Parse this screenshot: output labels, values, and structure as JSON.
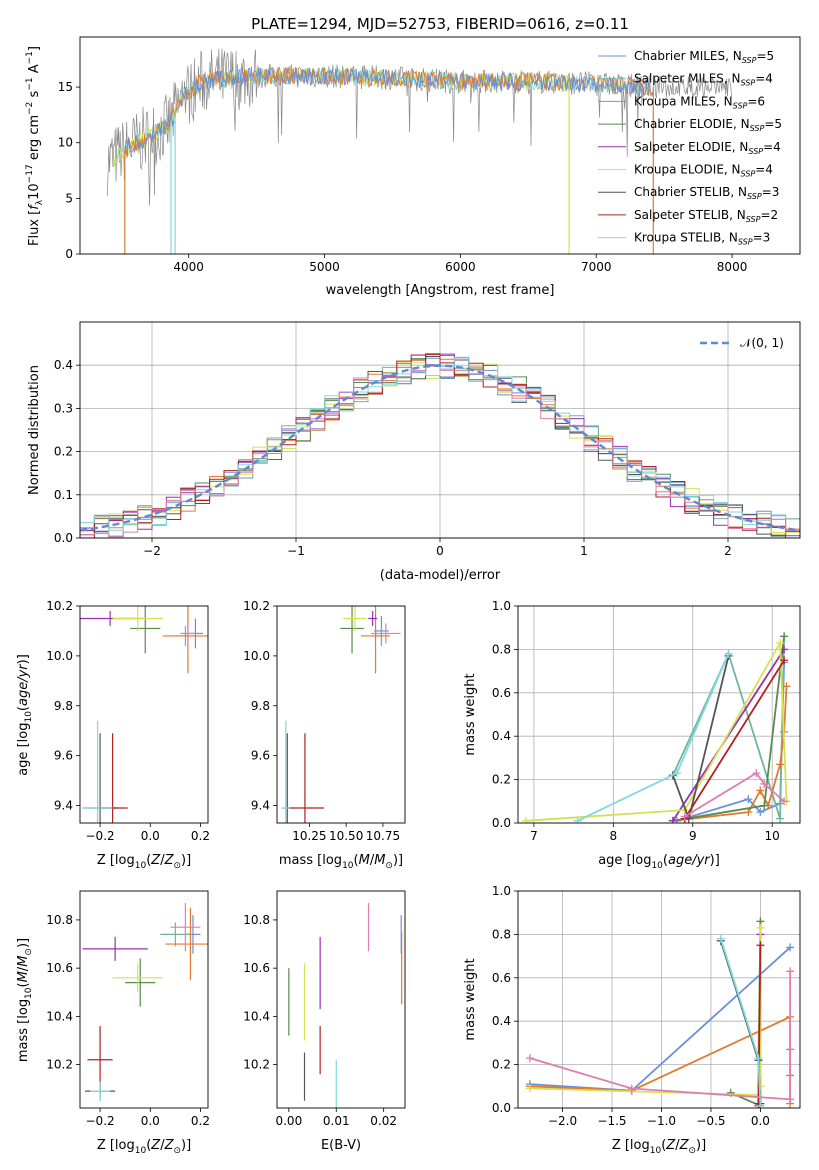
{
  "figure_title": "PLATE=1294, MJD=52753, FIBERID=0616, z=0.11",
  "colors": {
    "Chabrier MILES": "#6a8fd8",
    "Salpeter MILES": "#6fb5a0",
    "Kroupa MILES": "#e07b30",
    "Chabrier ELODIE": "#5a8a50",
    "Salpeter ELODIE": "#9b30b0",
    "Kroupa ELODIE": "#d8e050",
    "Chabrier STELIB": "#555555",
    "Salpeter STELIB": "#b02020",
    "Kroupa STELIB": "#80d8e0",
    "pink": "#e07cb0"
  },
  "chart_data": [
    {
      "id": "spectrum",
      "type": "line",
      "xlabel": "wavelength [Angstrom, rest frame]",
      "ylabel": "Flux [f_λ10^{-17} erg cm^{-2} s^{-1} A^{-1}]",
      "xlim": [
        3200,
        8500
      ],
      "ylim": [
        0,
        19.5
      ],
      "xticks": [
        "4000",
        "5000",
        "6000",
        "7000",
        "8000"
      ],
      "yticks": [
        "0",
        "5",
        "10",
        "15"
      ],
      "legend_position": "right",
      "legend": [
        {
          "label": "Chabrier MILES, N",
          "sub": "SSP",
          "suffix": "=5"
        },
        {
          "label": "Salpeter MILES, N",
          "sub": "SSP",
          "suffix": "=4"
        },
        {
          "label": "Kroupa MILES, N",
          "sub": "SSP",
          "suffix": "=6"
        },
        {
          "label": "Chabrier ELODIE, N",
          "sub": "SSP",
          "suffix": "=5"
        },
        {
          "label": "Salpeter ELODIE, N",
          "sub": "SSP",
          "suffix": "=4"
        },
        {
          "label": "Kroupa ELODIE, N",
          "sub": "SSP",
          "suffix": "=4"
        },
        {
          "label": "Chabrier STELIB, N",
          "sub": "SSP",
          "suffix": "=3"
        },
        {
          "label": "Salpeter STELIB, N",
          "sub": "SSP",
          "suffix": "=2"
        },
        {
          "label": "Kroupa STELIB, N",
          "sub": "SSP",
          "suffix": "=3"
        }
      ],
      "continuum_points": [
        [
          3400,
          8.2
        ],
        [
          3550,
          9.5
        ],
        [
          3700,
          10.5
        ],
        [
          3850,
          11.5
        ],
        [
          3950,
          14.0
        ],
        [
          4100,
          15.5
        ],
        [
          4300,
          15.8
        ],
        [
          4600,
          16.0
        ],
        [
          5000,
          16.0
        ],
        [
          5500,
          15.8
        ],
        [
          6000,
          15.5
        ],
        [
          6500,
          15.5
        ],
        [
          7000,
          15.3
        ],
        [
          7400,
          15.0
        ]
      ],
      "grey_extent": [
        3400,
        8000
      ]
    },
    {
      "id": "residuals",
      "type": "line",
      "xlabel": "(data-model)/error",
      "ylabel": "Normed distribution",
      "xlim": [
        -2.5,
        2.5
      ],
      "ylim": [
        0,
        0.5
      ],
      "xticks": [
        "−2",
        "−1",
        "0",
        "1",
        "2"
      ],
      "yticks": [
        "0.0",
        "0.1",
        "0.2",
        "0.3",
        "0.4"
      ],
      "grid": true,
      "legend_label": "𝒩(0, 1)",
      "legend_position": "top-right",
      "bin_width": 0.1
    },
    {
      "id": "age_vs_Z",
      "type": "scatter",
      "xlabel": "Z [log10(Z/Z_sun)]",
      "ylabel": "age [log10(age/yr)]",
      "xlim": [
        -0.28,
        0.23
      ],
      "ylim": [
        9.33,
        10.2
      ],
      "xticks": [
        "−0.2",
        "0.0",
        "0.2"
      ],
      "yticks": [
        "9.4",
        "9.6",
        "9.8",
        "10.0",
        "10.2"
      ],
      "points": [
        {
          "c": "Chabrier MILES",
          "x": 0.18,
          "y": 10.09,
          "xe": 0.03,
          "ye": 0.06
        },
        {
          "c": "Salpeter MILES",
          "x": 0.14,
          "y": 10.08,
          "xe": 0.05,
          "ye": 0.04
        },
        {
          "c": "Kroupa MILES",
          "x": 0.15,
          "y": 10.08,
          "xe": 0.1,
          "ye": 0.15
        },
        {
          "c": "Chabrier ELODIE",
          "x": -0.02,
          "y": 10.11,
          "xe": 0.06,
          "ye": 0.1
        },
        {
          "c": "Salpeter ELODIE",
          "x": -0.16,
          "y": 10.15,
          "xe": 0.13,
          "ye": 0.03
        },
        {
          "c": "Kroupa ELODIE",
          "x": -0.05,
          "y": 10.15,
          "xe": 0.1,
          "ye": 0.05
        },
        {
          "c": "Chabrier STELIB",
          "x": -0.2,
          "y": 9.39,
          "xe": 0.07,
          "ye": 0.3
        },
        {
          "c": "Salpeter STELIB",
          "x": -0.15,
          "y": 9.39,
          "xe": 0.06,
          "ye": 0.3
        },
        {
          "c": "Kroupa STELIB",
          "x": -0.21,
          "y": 9.39,
          "xe": 0.06,
          "ye": 0.35
        },
        {
          "c": "pink",
          "x": 0.15,
          "y": 10.09,
          "xe": 0.03,
          "ye": 0.04
        }
      ]
    },
    {
      "id": "age_vs_mass",
      "type": "scatter",
      "xlabel": "mass [log10(M/M_sun)]",
      "ylabel": "",
      "xlim": [
        10.03,
        10.9
      ],
      "ylim": [
        9.33,
        10.2
      ],
      "xticks": [
        "10.25",
        "10.50",
        "10.75"
      ],
      "yticks": [
        "9.4",
        "9.6",
        "9.8",
        "10.0",
        "10.2"
      ],
      "points": [
        {
          "c": "Chabrier MILES",
          "x": 10.74,
          "y": 10.1,
          "xe": 0.05,
          "ye": 0.06
        },
        {
          "c": "Salpeter MILES",
          "x": 10.74,
          "y": 10.08,
          "xe": 0.05,
          "ye": 0.04
        },
        {
          "c": "Kroupa MILES",
          "x": 10.7,
          "y": 10.08,
          "xe": 0.1,
          "ye": 0.15
        },
        {
          "c": "Chabrier ELODIE",
          "x": 10.54,
          "y": 10.11,
          "xe": 0.08,
          "ye": 0.1
        },
        {
          "c": "Salpeter ELODIE",
          "x": 10.68,
          "y": 10.15,
          "xe": 0.03,
          "ye": 0.03
        },
        {
          "c": "Kroupa ELODIE",
          "x": 10.56,
          "y": 10.15,
          "xe": 0.08,
          "ye": 0.05
        },
        {
          "c": "Chabrier STELIB",
          "x": 10.1,
          "y": 9.39,
          "xe": 0.03,
          "ye": 0.3
        },
        {
          "c": "Salpeter STELIB",
          "x": 10.22,
          "y": 9.39,
          "xe": 0.13,
          "ye": 0.3
        },
        {
          "c": "Kroupa STELIB",
          "x": 10.09,
          "y": 9.39,
          "xe": 0.03,
          "ye": 0.35
        },
        {
          "c": "pink",
          "x": 10.77,
          "y": 10.09,
          "xe": 0.1,
          "ye": 0.04
        }
      ]
    },
    {
      "id": "weight_vs_age",
      "type": "line",
      "xlabel": "age [log10(age/yr)]",
      "ylabel": "mass weight",
      "xlim": [
        6.8,
        10.35
      ],
      "ylim": [
        0,
        1
      ],
      "xticks": [
        "7",
        "8",
        "9",
        "10"
      ],
      "yticks": [
        "0.0",
        "0.2",
        "0.4",
        "0.6",
        "0.8",
        "1.0"
      ],
      "grid": true,
      "series": [
        {
          "c": "Chabrier MILES",
          "x": [
            8.8,
            9.7,
            9.85,
            10.1,
            10.15
          ],
          "y": [
            0.01,
            0.11,
            0.05,
            0.09,
            0.74
          ]
        },
        {
          "c": "Salpeter MILES",
          "x": [
            8.75,
            9.45,
            10.1,
            10.15
          ],
          "y": [
            0.22,
            0.78,
            0.02,
            0.86
          ]
        },
        {
          "c": "Kroupa MILES",
          "x": [
            8.75,
            9.7,
            9.85,
            9.95,
            10.1,
            10.15,
            10.18
          ],
          "y": [
            0.01,
            0.05,
            0.15,
            0.08,
            0.27,
            0.42,
            0.63
          ]
        },
        {
          "c": "Chabrier ELODIE",
          "x": [
            8.75,
            9.9,
            10.15
          ],
          "y": [
            0.01,
            0.08,
            0.86
          ]
        },
        {
          "c": "Salpeter ELODIE",
          "x": [
            8.75,
            10.15
          ],
          "y": [
            0.01,
            0.8
          ]
        },
        {
          "c": "Kroupa ELODIE",
          "x": [
            6.9,
            8.9,
            10.1,
            10.18
          ],
          "y": [
            0.01,
            0.06,
            0.83,
            0.1
          ]
        },
        {
          "c": "Chabrier STELIB",
          "x": [
            8.75,
            8.95,
            9.45
          ],
          "y": [
            0.22,
            0.02,
            0.77
          ]
        },
        {
          "c": "Salpeter STELIB",
          "x": [
            8.9,
            10.15
          ],
          "y": [
            0.02,
            0.75
          ]
        },
        {
          "c": "Kroupa STELIB",
          "x": [
            7.55,
            8.8,
            9.45
          ],
          "y": [
            0.01,
            0.23,
            0.78
          ]
        },
        {
          "c": "pink",
          "x": [
            8.9,
            9.8,
            9.9,
            10.15
          ],
          "y": [
            0.03,
            0.23,
            0.18,
            0.1
          ]
        }
      ]
    },
    {
      "id": "mass_vs_Z",
      "type": "scatter",
      "xlabel": "Z [log10(Z/Z_sun)]",
      "ylabel": "mass [log10(M/M_sun)]",
      "xlim": [
        -0.28,
        0.23
      ],
      "ylim": [
        10.02,
        10.92
      ],
      "xticks": [
        "−0.2",
        "0.0",
        "0.2"
      ],
      "yticks": [
        "10.2",
        "10.4",
        "10.6",
        "10.8"
      ],
      "points": [
        {
          "c": "Chabrier MILES",
          "x": 0.17,
          "y": 10.74,
          "xe": 0.03,
          "ye": 0.08
        },
        {
          "c": "Salpeter MILES",
          "x": 0.1,
          "y": 10.74,
          "xe": 0.06,
          "ye": 0.05
        },
        {
          "c": "Kroupa MILES",
          "x": 0.16,
          "y": 10.7,
          "xe": 0.1,
          "ye": 0.15
        },
        {
          "c": "Chabrier ELODIE",
          "x": -0.04,
          "y": 10.54,
          "xe": 0.06,
          "ye": 0.1
        },
        {
          "c": "Salpeter ELODIE",
          "x": -0.14,
          "y": 10.68,
          "xe": 0.13,
          "ye": 0.05
        },
        {
          "c": "Kroupa ELODIE",
          "x": -0.05,
          "y": 10.56,
          "xe": 0.1,
          "ye": 0.06
        },
        {
          "c": "Chabrier STELIB",
          "x": -0.2,
          "y": 10.09,
          "xe": 0.06,
          "ye": 0.04
        },
        {
          "c": "Salpeter STELIB",
          "x": -0.2,
          "y": 10.22,
          "xe": 0.05,
          "ye": 0.14
        },
        {
          "c": "Kroupa STELIB",
          "x": -0.2,
          "y": 10.09,
          "xe": 0.04,
          "ye": 0.04
        },
        {
          "c": "pink",
          "x": 0.14,
          "y": 10.77,
          "xe": 0.06,
          "ye": 0.1
        }
      ]
    },
    {
      "id": "mass_vs_EBV",
      "type": "scatter",
      "xlabel": "E(B-V)",
      "ylabel": "",
      "xlim": [
        -0.0025,
        0.0245
      ],
      "ylim": [
        10.02,
        10.92
      ],
      "xticks": [
        "0.00",
        "0.01",
        "0.02"
      ],
      "yticks": [
        "10.2",
        "10.4",
        "10.6",
        "10.8"
      ],
      "points": [
        {
          "c": "Chabrier MILES",
          "x": 0.0237,
          "y": 10.74,
          "ye": 0.08
        },
        {
          "c": "Kroupa MILES",
          "x": 0.0238,
          "y": 10.6,
          "ye": 0.15
        },
        {
          "c": "Chabrier ELODIE",
          "x": 0.0,
          "y": 10.46,
          "ye": 0.14
        },
        {
          "c": "Salpeter ELODIE",
          "x": 0.0066,
          "y": 10.58,
          "ye": 0.15
        },
        {
          "c": "Kroupa ELODIE",
          "x": 0.0033,
          "y": 10.46,
          "ye": 0.16
        },
        {
          "c": "Chabrier STELIB",
          "x": 0.0033,
          "y": 10.15,
          "ye": 0.1
        },
        {
          "c": "Salpeter STELIB",
          "x": 0.0066,
          "y": 10.26,
          "ye": 0.1
        },
        {
          "c": "Kroupa STELIB",
          "x": 0.01,
          "y": 10.12,
          "ye": 0.1
        },
        {
          "c": "pink",
          "x": 0.0168,
          "y": 10.77,
          "ye": 0.1
        }
      ]
    },
    {
      "id": "weight_vs_Z",
      "type": "line",
      "xlabel": "Z [log10(Z/Z_sun)]",
      "ylabel": "mass weight",
      "xlim": [
        -2.45,
        0.4
      ],
      "ylim": [
        0,
        1
      ],
      "xticks": [
        "−2.0",
        "−1.5",
        "−1.0",
        "−0.5",
        "0.0"
      ],
      "yticks": [
        "0.0",
        "0.2",
        "0.4",
        "0.6",
        "0.8",
        "1.0"
      ],
      "grid": true,
      "series": [
        {
          "c": "Chabrier MILES",
          "x": [
            -2.33,
            -1.3,
            0.3
          ],
          "y": [
            0.11,
            0.08,
            0.74
          ]
        },
        {
          "c": "Salpeter MILES",
          "x": [
            -0.4,
            -0.02,
            0.0
          ],
          "y": [
            0.77,
            0.22,
            0.86
          ]
        },
        {
          "c": "Kroupa MILES",
          "x": [
            -2.33,
            -1.3,
            0.3,
            0.3,
            0.3,
            0.3
          ],
          "y": [
            0.1,
            0.08,
            0.42,
            0.27,
            0.15,
            0.02
          ]
        },
        {
          "c": "Chabrier ELODIE",
          "x": [
            -0.3,
            0.0,
            0.0
          ],
          "y": [
            0.07,
            0.01,
            0.86
          ]
        },
        {
          "c": "Salpeter ELODIE",
          "x": [
            -0.02,
            0.0
          ],
          "y": [
            0.01,
            0.8
          ]
        },
        {
          "c": "Kroupa ELODIE",
          "x": [
            -2.33,
            -0.02,
            0.0,
            0.0
          ],
          "y": [
            0.09,
            0.06,
            0.83,
            0.1
          ]
        },
        {
          "c": "Chabrier STELIB",
          "x": [
            -0.4,
            -0.02,
            0.0
          ],
          "y": [
            0.77,
            0.22,
            0.02
          ]
        },
        {
          "c": "Salpeter STELIB",
          "x": [
            -0.02,
            0.0
          ],
          "y": [
            0.02,
            0.75
          ]
        },
        {
          "c": "Kroupa STELIB",
          "x": [
            -0.4,
            -0.02,
            0.0
          ],
          "y": [
            0.78,
            0.23,
            0.01
          ]
        },
        {
          "c": "pink",
          "x": [
            -2.33,
            -1.3,
            0.3,
            0.3
          ],
          "y": [
            0.23,
            0.09,
            0.04,
            0.63
          ]
        }
      ]
    }
  ]
}
